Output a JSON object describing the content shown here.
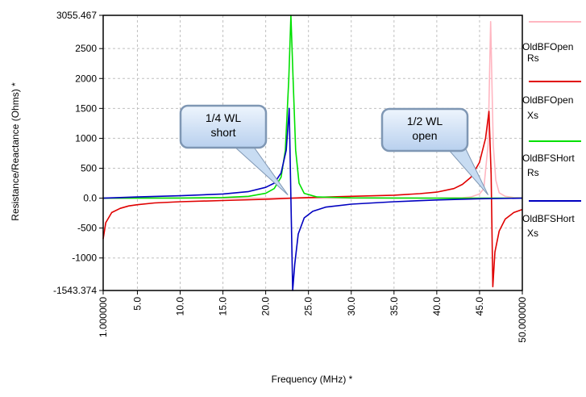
{
  "chart_data": {
    "type": "line",
    "title": "",
    "xlabel": "Frequency (MHz) *",
    "ylabel": "Resistance/Reactance (Ohms) *",
    "xlim": [
      1.0,
      50.0
    ],
    "ylim": [
      -1543.374,
      3055.467
    ],
    "x_tick_labels": [
      {
        "value": 1.0,
        "label": "1.000000"
      },
      {
        "value": 5.0,
        "label": "5.0"
      },
      {
        "value": 10.0,
        "label": "10.0"
      },
      {
        "value": 15.0,
        "label": "15.0"
      },
      {
        "value": 20.0,
        "label": "20.0"
      },
      {
        "value": 25.0,
        "label": "25.0"
      },
      {
        "value": 30.0,
        "label": "30.0"
      },
      {
        "value": 35.0,
        "label": "35.0"
      },
      {
        "value": 40.0,
        "label": "40.0"
      },
      {
        "value": 45.0,
        "label": "45.0"
      },
      {
        "value": 50.0,
        "label": "50.000000"
      }
    ],
    "y_tick_labels": [
      {
        "value": 3055.467,
        "label": "3055.467"
      },
      {
        "value": 2500,
        "label": "2500"
      },
      {
        "value": 2000,
        "label": "2000"
      },
      {
        "value": 1500,
        "label": "1500"
      },
      {
        "value": 1000,
        "label": "1000"
      },
      {
        "value": 500,
        "label": "500"
      },
      {
        "value": 0,
        "label": "0.0"
      },
      {
        "value": -500,
        "label": "-500"
      },
      {
        "value": -1000,
        "label": "-1000"
      },
      {
        "value": -1543.374,
        "label": "-1543.374"
      }
    ],
    "grid": true,
    "legend_position": "right",
    "series": [
      {
        "name": "OldBFOpen Rs",
        "color": "#ffb6c1",
        "points": [
          [
            1,
            0
          ],
          [
            20,
            0
          ],
          [
            40,
            2
          ],
          [
            43,
            8
          ],
          [
            44,
            20
          ],
          [
            45,
            70
          ],
          [
            45.5,
            160
          ],
          [
            46.0,
            900
          ],
          [
            46.3,
            2950
          ],
          [
            46.6,
            900
          ],
          [
            46.9,
            300
          ],
          [
            47.3,
            90
          ],
          [
            48,
            30
          ],
          [
            49,
            10
          ],
          [
            50,
            5
          ]
        ]
      },
      {
        "name": "OldBFOpen Xs",
        "color": "#e00000",
        "points": [
          [
            1,
            -680
          ],
          [
            1.3,
            -410
          ],
          [
            2,
            -240
          ],
          [
            3,
            -170
          ],
          [
            4,
            -130
          ],
          [
            5,
            -110
          ],
          [
            7,
            -80
          ],
          [
            10,
            -60
          ],
          [
            15,
            -40
          ],
          [
            20,
            -20
          ],
          [
            23,
            0
          ],
          [
            25,
            10
          ],
          [
            30,
            30
          ],
          [
            35,
            50
          ],
          [
            38,
            75
          ],
          [
            40,
            100
          ],
          [
            42,
            160
          ],
          [
            43,
            230
          ],
          [
            44,
            350
          ],
          [
            45,
            600
          ],
          [
            45.7,
            1000
          ],
          [
            46.1,
            1450
          ],
          [
            46.35,
            400
          ],
          [
            46.55,
            -1480
          ],
          [
            46.8,
            -900
          ],
          [
            47.3,
            -550
          ],
          [
            48,
            -350
          ],
          [
            49,
            -240
          ],
          [
            50,
            -190
          ]
        ]
      },
      {
        "name": "OldBFSHort Rs",
        "color": "#00e000",
        "points": [
          [
            1,
            0
          ],
          [
            10,
            2
          ],
          [
            15,
            10
          ],
          [
            18,
            30
          ],
          [
            20,
            80
          ],
          [
            21,
            160
          ],
          [
            21.8,
            350
          ],
          [
            22.3,
            800
          ],
          [
            22.7,
            2000
          ],
          [
            22.95,
            3055
          ],
          [
            23.2,
            2000
          ],
          [
            23.5,
            800
          ],
          [
            23.9,
            250
          ],
          [
            24.5,
            80
          ],
          [
            26,
            20
          ],
          [
            30,
            5
          ],
          [
            35,
            2
          ],
          [
            40,
            0
          ],
          [
            50,
            0
          ]
        ]
      },
      {
        "name": "OldBFSHort Xs",
        "color": "#0000c0",
        "points": [
          [
            1,
            0
          ],
          [
            5,
            20
          ],
          [
            10,
            40
          ],
          [
            15,
            70
          ],
          [
            18,
            110
          ],
          [
            20,
            180
          ],
          [
            21,
            250
          ],
          [
            21.8,
            420
          ],
          [
            22.4,
            800
          ],
          [
            22.75,
            1500
          ],
          [
            22.95,
            0
          ],
          [
            23.15,
            -1543
          ],
          [
            23.4,
            -1100
          ],
          [
            23.8,
            -600
          ],
          [
            24.5,
            -330
          ],
          [
            25.5,
            -220
          ],
          [
            27,
            -150
          ],
          [
            30,
            -100
          ],
          [
            35,
            -60
          ],
          [
            40,
            -30
          ],
          [
            45,
            -10
          ],
          [
            50,
            0
          ]
        ]
      }
    ],
    "annotations": [
      {
        "lines": [
          "1/4 WL",
          "short"
        ],
        "target": [
          22.6,
          0
        ]
      },
      {
        "lines": [
          "1/2 WL",
          "open"
        ],
        "target": [
          46.0,
          0
        ]
      }
    ]
  }
}
